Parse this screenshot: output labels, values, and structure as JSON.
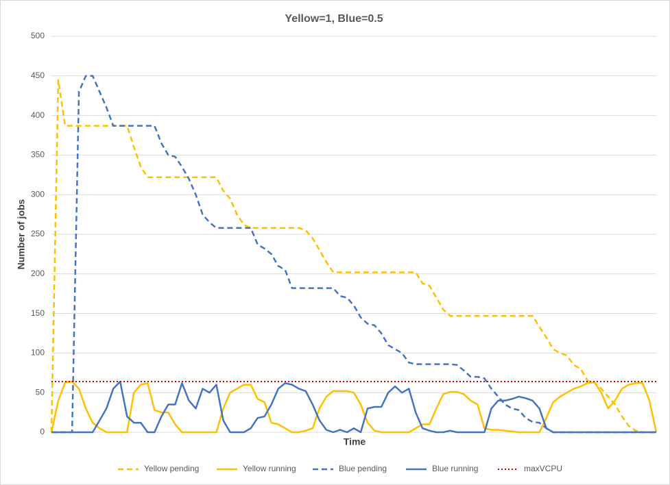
{
  "chart_data": {
    "type": "line",
    "title": "Yellow=1, Blue=0.5",
    "xlabel": "Time",
    "ylabel": "Number of jobs",
    "ylim": [
      0,
      500
    ],
    "yticks": [
      0,
      50,
      100,
      150,
      200,
      250,
      300,
      350,
      400,
      450,
      500
    ],
    "grid": true,
    "legend": "bottom",
    "series": [
      {
        "name": "Yellow pending",
        "color": "#ffc000",
        "style": "dashed",
        "values": [
          0,
          445,
          387,
          387,
          387,
          387,
          387,
          387,
          387,
          387,
          387,
          387,
          360,
          335,
          322,
          322,
          322,
          322,
          322,
          322,
          322,
          322,
          322,
          322,
          322,
          305,
          295,
          275,
          262,
          258,
          258,
          258,
          258,
          258,
          258,
          258,
          258,
          255,
          245,
          230,
          215,
          202,
          202,
          202,
          202,
          202,
          202,
          202,
          202,
          202,
          202,
          202,
          202,
          202,
          188,
          185,
          170,
          155,
          147,
          147,
          147,
          147,
          147,
          147,
          147,
          147,
          147,
          147,
          147,
          147,
          147,
          133,
          120,
          105,
          100,
          97,
          85,
          80,
          65,
          63,
          55,
          45,
          35,
          20,
          8,
          2,
          0,
          0,
          0
        ]
      },
      {
        "name": "Yellow running",
        "color": "#ffc000",
        "style": "solid",
        "values": [
          0,
          40,
          63,
          64,
          55,
          30,
          12,
          5,
          0,
          0,
          0,
          0,
          50,
          60,
          62,
          28,
          25,
          25,
          10,
          0,
          0,
          0,
          0,
          0,
          0,
          30,
          50,
          55,
          60,
          60,
          42,
          38,
          12,
          10,
          5,
          0,
          0,
          2,
          5,
          30,
          45,
          52,
          52,
          52,
          50,
          35,
          12,
          2,
          0,
          0,
          0,
          0,
          0,
          5,
          10,
          10,
          30,
          48,
          51,
          51,
          48,
          40,
          35,
          5,
          3,
          3,
          2,
          1,
          0,
          0,
          0,
          0,
          18,
          38,
          45,
          50,
          55,
          58,
          62,
          63,
          50,
          30,
          40,
          55,
          60,
          62,
          62,
          40,
          0
        ]
      },
      {
        "name": "Blue pending",
        "color": "#4472c4",
        "style": "dashed",
        "values": [
          0,
          0,
          0,
          0,
          430,
          450,
          450,
          430,
          410,
          387,
          387,
          387,
          387,
          387,
          387,
          387,
          365,
          350,
          348,
          335,
          320,
          300,
          275,
          265,
          258,
          258,
          258,
          258,
          258,
          258,
          237,
          232,
          225,
          210,
          205,
          182,
          182,
          182,
          182,
          182,
          182,
          182,
          172,
          170,
          160,
          145,
          137,
          135,
          125,
          110,
          105,
          100,
          88,
          86,
          86,
          86,
          86,
          86,
          86,
          85,
          78,
          70,
          70,
          68,
          55,
          45,
          35,
          30,
          28,
          18,
          13,
          12,
          5,
          0,
          0,
          0,
          0,
          0,
          0,
          0,
          0,
          0,
          0,
          0,
          0,
          0,
          0,
          0,
          0
        ]
      },
      {
        "name": "Blue running",
        "color": "#4472c4",
        "style": "solid",
        "values": [
          0,
          0,
          0,
          0,
          0,
          0,
          0,
          15,
          30,
          55,
          64,
          20,
          12,
          12,
          0,
          0,
          20,
          35,
          35,
          62,
          40,
          30,
          55,
          50,
          60,
          15,
          0,
          0,
          0,
          5,
          18,
          20,
          35,
          55,
          62,
          60,
          55,
          52,
          35,
          15,
          3,
          0,
          3,
          0,
          5,
          0,
          30,
          32,
          32,
          50,
          58,
          50,
          55,
          25,
          5,
          2,
          0,
          0,
          2,
          0,
          0,
          0,
          0,
          0,
          30,
          40,
          40,
          42,
          45,
          43,
          40,
          30,
          5,
          0,
          0,
          0,
          0,
          0,
          0,
          0,
          0,
          0,
          0,
          0,
          0,
          0,
          0,
          0,
          0
        ]
      },
      {
        "name": "maxVCPU",
        "color": "#c00000",
        "style": "dotted",
        "values": [
          64,
          64,
          64,
          64,
          64,
          64,
          64,
          64,
          64,
          64,
          64,
          64,
          64,
          64,
          64,
          64,
          64,
          64,
          64,
          64,
          64,
          64,
          64,
          64,
          64,
          64,
          64,
          64,
          64,
          64,
          64,
          64,
          64,
          64,
          64,
          64,
          64,
          64,
          64,
          64,
          64,
          64,
          64,
          64,
          64,
          64,
          64,
          64,
          64,
          64,
          64,
          64,
          64,
          64,
          64,
          64,
          64,
          64,
          64,
          64,
          64,
          64,
          64,
          64,
          64,
          64,
          64,
          64,
          64,
          64,
          64,
          64,
          64,
          64,
          64,
          64,
          64,
          64,
          64,
          64,
          64,
          64,
          64,
          64,
          64,
          64,
          64,
          64,
          64
        ]
      }
    ]
  }
}
